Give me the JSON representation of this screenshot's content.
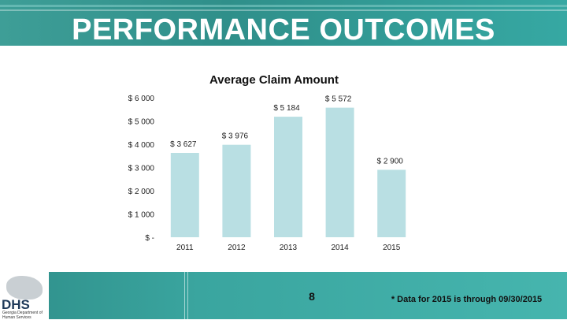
{
  "slide": {
    "title": "PERFORMANCE OUTCOMES",
    "page_number": "8",
    "footnote": "* Data for 2015 is through 09/30/2015"
  },
  "logo": {
    "text": "DHS",
    "subtext": "Georgia Department of Human Services"
  },
  "colors": {
    "bar": "#b9dfe3",
    "header": "#35a29c",
    "text": "#111111"
  },
  "chart_data": {
    "type": "bar",
    "title": "Average Claim Amount",
    "categories": [
      "2011",
      "2012",
      "2013",
      "2014",
      "2015"
    ],
    "values": [
      3627,
      3976,
      5184,
      5572,
      2900
    ],
    "data_labels": [
      "$ 3 627",
      "$ 3 976",
      "$ 5 184",
      "$ 5 572",
      "$ 2 900"
    ],
    "y_ticks": [
      0,
      1000,
      2000,
      3000,
      4000,
      5000,
      6000
    ],
    "y_tick_labels": [
      "$ -",
      "$ 1 000",
      "$ 2 000",
      "$ 3 000",
      "$ 4 000",
      "$ 5 000",
      "$ 6 000"
    ],
    "ylim": [
      0,
      6000
    ],
    "grid": false,
    "legend": "none"
  }
}
